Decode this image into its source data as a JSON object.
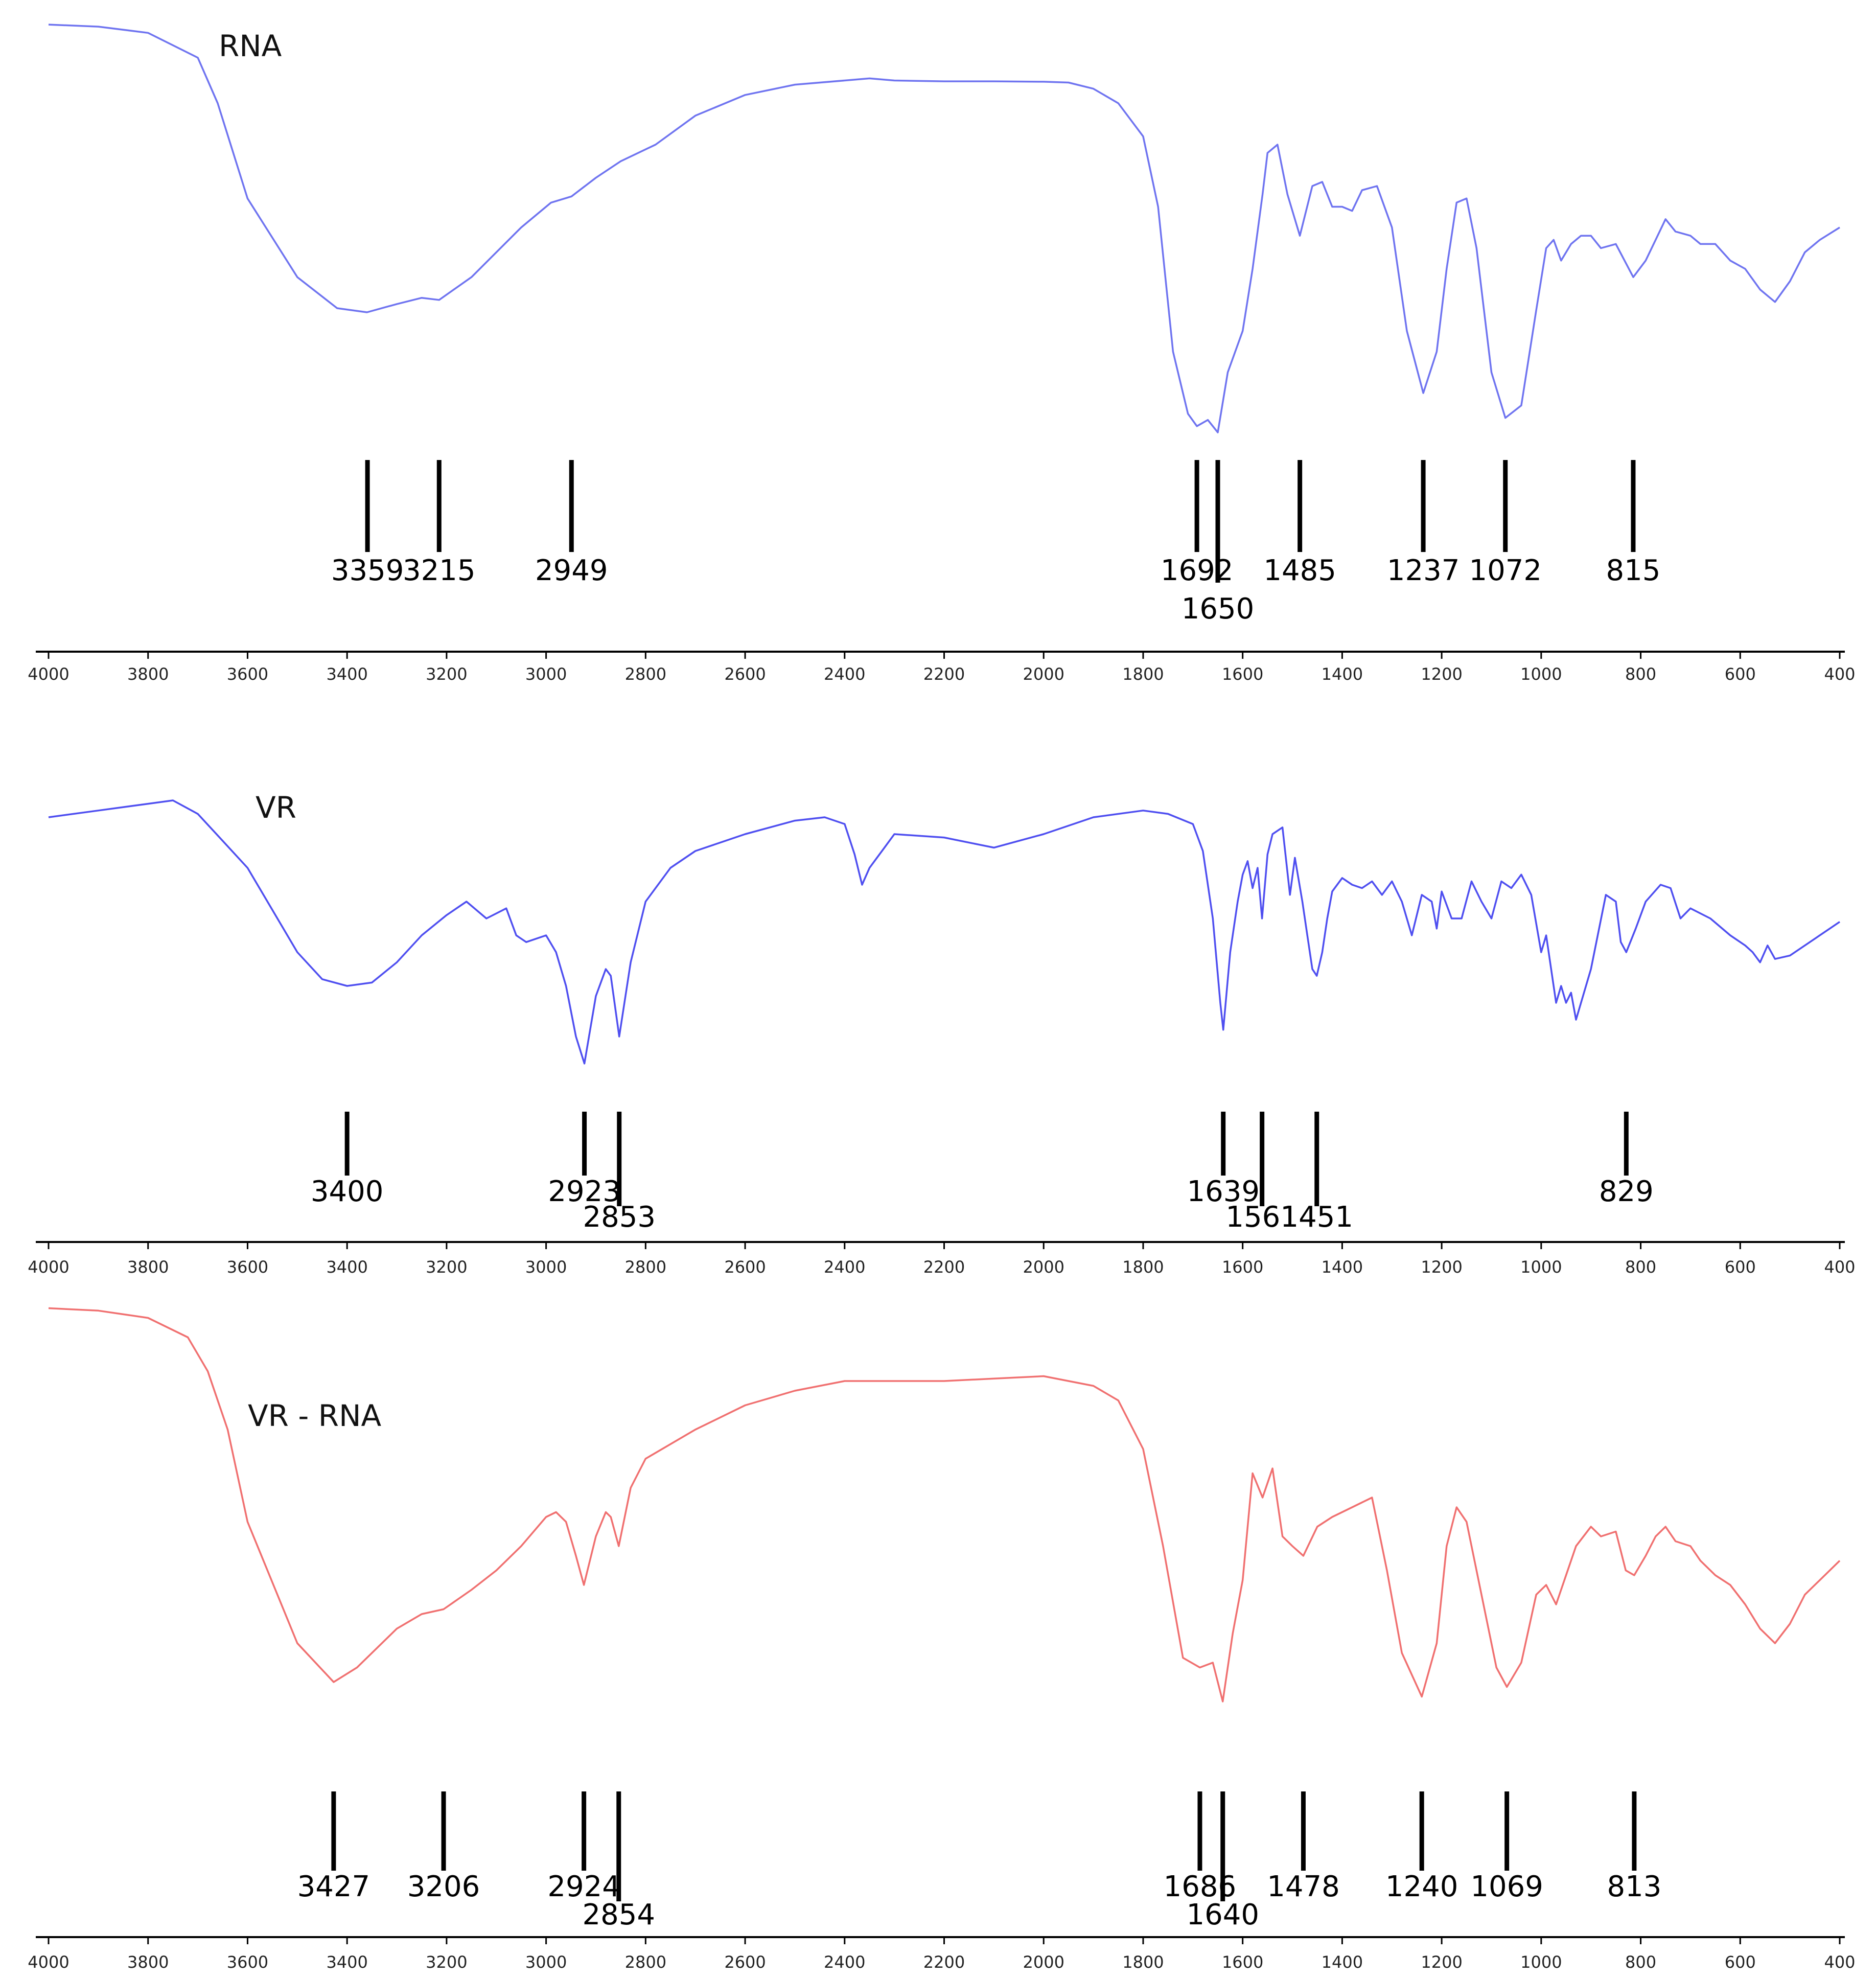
{
  "chart_data": [
    {
      "type": "line",
      "title": "RNA",
      "xlim": [
        4000,
        400
      ],
      "xticks": [
        4000,
        3800,
        3600,
        3400,
        3200,
        3000,
        2800,
        2600,
        2400,
        2200,
        2000,
        1800,
        1600,
        1400,
        1200,
        1000,
        800,
        600,
        400
      ],
      "line_color": "#6f74f0",
      "series": [
        {
          "x": [
            4000,
            3900,
            3800,
            3700,
            3660,
            3600,
            3500,
            3420,
            3360,
            3300,
            3250,
            3215,
            3150,
            3050,
            2990,
            2949,
            2900,
            2850,
            2780,
            2700,
            2600,
            2500,
            2400,
            2350,
            2300,
            2200,
            2100,
            2000,
            1950,
            1900,
            1850,
            1800,
            1770,
            1740,
            1710,
            1692,
            1670,
            1650,
            1630,
            1600,
            1580,
            1560,
            1550,
            1530,
            1510,
            1485,
            1460,
            1440,
            1420,
            1400,
            1380,
            1360,
            1330,
            1300,
            1270,
            1237,
            1210,
            1190,
            1170,
            1150,
            1130,
            1100,
            1072,
            1040,
            1010,
            990,
            975,
            960,
            940,
            920,
            900,
            880,
            850,
            815,
            790,
            770,
            750,
            730,
            700,
            680,
            650,
            620,
            590,
            560,
            530,
            500,
            470,
            440,
            400
          ],
          "y": [
            99,
            98.5,
            97,
            91,
            80,
            57,
            38,
            30.5,
            29.5,
            31.5,
            33,
            32.5,
            38,
            50,
            56,
            57.5,
            62,
            66,
            70,
            77,
            82,
            84.5,
            85.5,
            86,
            85.5,
            85.3,
            85.3,
            85.2,
            85,
            83.5,
            80,
            72,
            55,
            20,
            5,
            2,
            3.5,
            0.5,
            15,
            25,
            40,
            58,
            68,
            70,
            58,
            48,
            60,
            61,
            55,
            55,
            54,
            59,
            60,
            50,
            25,
            10,
            20,
            40,
            56,
            57,
            45,
            15,
            4,
            7,
            30,
            45,
            47,
            42,
            46,
            48,
            48,
            45,
            46,
            38,
            42,
            47,
            52,
            49,
            48,
            46,
            46,
            42,
            40,
            35,
            32,
            37,
            44,
            47,
            50
          ]
        }
      ],
      "peaks": [
        "3359",
        "3215",
        "2949",
        "1692",
        "1650",
        "1485",
        "1237",
        "1072",
        "815"
      ]
    },
    {
      "type": "line",
      "title": "VR",
      "xlim": [
        4000,
        400
      ],
      "xticks": [
        4000,
        3800,
        3600,
        3400,
        3200,
        3000,
        2800,
        2600,
        2400,
        2200,
        2000,
        1800,
        1600,
        1400,
        1200,
        1000,
        800,
        600,
        400
      ],
      "line_color": "#4f4ff0",
      "series": [
        {
          "x": [
            4000,
            3900,
            3800,
            3750,
            3700,
            3650,
            3600,
            3500,
            3450,
            3400,
            3350,
            3300,
            3250,
            3200,
            3160,
            3120,
            3080,
            3060,
            3040,
            3000,
            2980,
            2960,
            2940,
            2923,
            2900,
            2880,
            2870,
            2853,
            2830,
            2800,
            2750,
            2700,
            2600,
            2500,
            2440,
            2400,
            2380,
            2365,
            2350,
            2340,
            2320,
            2300,
            2200,
            2100,
            2000,
            1900,
            1800,
            1750,
            1700,
            1680,
            1660,
            1645,
            1639,
            1625,
            1610,
            1600,
            1590,
            1580,
            1570,
            1561,
            1550,
            1540,
            1520,
            1505,
            1495,
            1480,
            1470,
            1460,
            1451,
            1440,
            1430,
            1420,
            1400,
            1380,
            1360,
            1340,
            1320,
            1300,
            1280,
            1260,
            1240,
            1220,
            1210,
            1200,
            1180,
            1160,
            1140,
            1120,
            1100,
            1080,
            1060,
            1040,
            1020,
            1000,
            990,
            980,
            970,
            960,
            950,
            940,
            930,
            900,
            870,
            850,
            840,
            829,
            810,
            790,
            760,
            740,
            720,
            700,
            660,
            620,
            590,
            575,
            560,
            545,
            530,
            500,
            460,
            420,
            400
          ],
          "y": [
            85,
            87,
            89,
            90,
            86,
            78,
            70,
            45,
            37,
            35,
            36,
            42,
            50,
            56,
            60,
            55,
            58,
            50,
            48,
            50,
            45,
            35,
            20,
            12,
            32,
            40,
            38,
            20,
            42,
            60,
            70,
            75,
            80,
            84,
            85,
            83,
            74,
            65,
            70,
            72,
            76,
            80,
            79,
            76,
            80,
            85,
            87,
            86,
            83,
            75,
            55,
            30,
            22,
            45,
            60,
            68,
            72,
            64,
            70,
            55,
            74,
            80,
            82,
            62,
            73,
            60,
            50,
            40,
            38,
            45,
            55,
            63,
            67,
            65,
            64,
            66,
            62,
            66,
            60,
            50,
            62,
            60,
            52,
            63,
            55,
            55,
            66,
            60,
            55,
            66,
            64,
            68,
            62,
            45,
            50,
            40,
            30,
            35,
            30,
            33,
            25,
            40,
            62,
            60,
            48,
            45,
            52,
            60,
            65,
            64,
            55,
            58,
            55,
            50,
            47,
            45,
            42,
            47,
            43,
            44,
            48,
            52,
            54
          ]
        }
      ],
      "peaks": [
        "3400",
        "2923",
        "2853",
        "1639",
        "1561",
        "1451",
        "829"
      ]
    },
    {
      "type": "line",
      "title": "VR - RNA",
      "xlim": [
        4000,
        400
      ],
      "xticks": [
        4000,
        3800,
        3600,
        3400,
        3200,
        3000,
        2800,
        2600,
        2400,
        2200,
        2000,
        1800,
        1600,
        1400,
        1200,
        1000,
        800,
        600,
        400
      ],
      "line_color": "#f07070",
      "series": [
        {
          "x": [
            4000,
            3900,
            3800,
            3720,
            3680,
            3640,
            3600,
            3500,
            3427,
            3380,
            3300,
            3250,
            3206,
            3150,
            3100,
            3050,
            3000,
            2980,
            2960,
            2940,
            2924,
            2900,
            2880,
            2870,
            2854,
            2830,
            2800,
            2700,
            2600,
            2500,
            2400,
            2300,
            2200,
            2100,
            2000,
            1900,
            1850,
            1800,
            1760,
            1720,
            1686,
            1660,
            1640,
            1620,
            1600,
            1580,
            1560,
            1540,
            1520,
            1500,
            1478,
            1450,
            1420,
            1400,
            1380,
            1360,
            1340,
            1310,
            1280,
            1240,
            1210,
            1190,
            1170,
            1150,
            1120,
            1090,
            1069,
            1040,
            1010,
            990,
            970,
            950,
            930,
            900,
            880,
            850,
            830,
            813,
            790,
            770,
            750,
            730,
            700,
            680,
            650,
            620,
            590,
            560,
            530,
            500,
            470,
            440,
            400
          ],
          "y": [
            99,
            98.5,
            97,
            93,
            86,
            74,
            55,
            30,
            22,
            25,
            33,
            36,
            37,
            41,
            45,
            50,
            56,
            57,
            55,
            48,
            42,
            52,
            57,
            56,
            50,
            62,
            68,
            74,
            79,
            82,
            84,
            84,
            84,
            84.5,
            85,
            83,
            80,
            70,
            50,
            27,
            25,
            26,
            18,
            32,
            43,
            65,
            60,
            66,
            52,
            50,
            48,
            54,
            56,
            57,
            58,
            59,
            60,
            45,
            28,
            19,
            30,
            50,
            58,
            55,
            40,
            25,
            21,
            26,
            40,
            42,
            38,
            44,
            50,
            54,
            52,
            53,
            45,
            44,
            48,
            52,
            54,
            51,
            50,
            47,
            44,
            42,
            38,
            33,
            30,
            34,
            40,
            43,
            47
          ]
        }
      ],
      "peaks": [
        "3427",
        "3206",
        "2924",
        "2854",
        "1686",
        "1640",
        "1478",
        "1240",
        "1069",
        "813"
      ]
    }
  ]
}
